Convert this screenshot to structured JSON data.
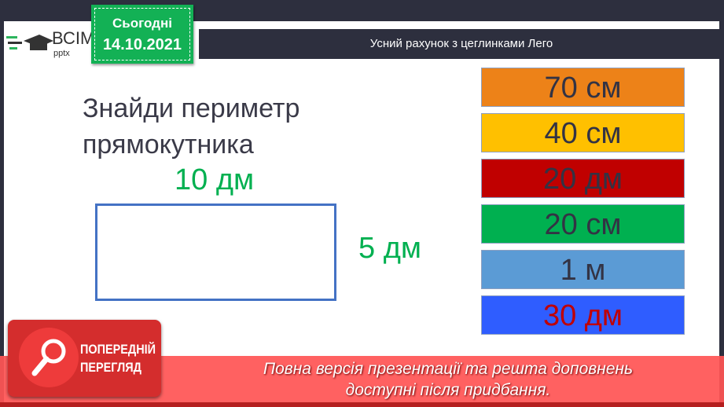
{
  "logo": {
    "text": "ВСІМ",
    "sub": "pptx"
  },
  "date": {
    "label": "Сьогодні",
    "value": "14.10.2021"
  },
  "title": "Усний рахунок з цеглинками Лего",
  "task": {
    "line1": "Знайди периметр",
    "line2": "прямокутника"
  },
  "rectangle": {
    "width_label": "10 дм",
    "height_label": "5 дм"
  },
  "answers": [
    {
      "label": "70 см",
      "color": "#ed8218"
    },
    {
      "label": "40 см",
      "color": "#ffc000"
    },
    {
      "label": "20 дм",
      "color": "#c00000"
    },
    {
      "label": "20 см",
      "color": "#00b050"
    },
    {
      "label": "1 м",
      "color": "#5b9bd5"
    },
    {
      "label": "30 дм",
      "color": "#2f5dff"
    }
  ],
  "preview": {
    "badge_line1": "ПОПЕРЕДНІЙ",
    "badge_line2": "ПЕРЕГЛЯД",
    "message_line1": "Повна версія презентації та решта доповнень",
    "message_line2": "доступні після придбання."
  }
}
